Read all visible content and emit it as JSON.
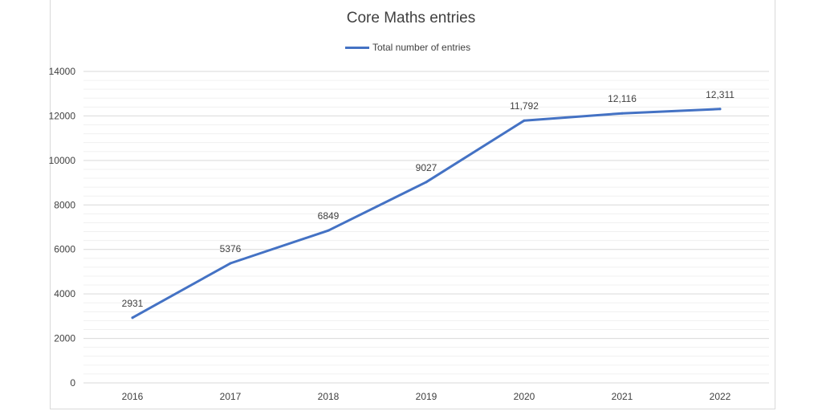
{
  "chart_data": {
    "type": "line",
    "title": "Core Maths entries",
    "categories": [
      "2016",
      "2017",
      "2018",
      "2019",
      "2020",
      "2021",
      "2022"
    ],
    "series": [
      {
        "name": "Total number of entries",
        "values": [
          2931,
          5376,
          6849,
          9027,
          11792,
          12116,
          12311
        ],
        "data_labels": [
          "2931",
          "5376",
          "6849",
          "9027",
          "11,792",
          "12,116",
          "12,311"
        ],
        "color": "#4472c4"
      }
    ],
    "ylim": [
      0,
      14000
    ],
    "y_ticks": [
      "0",
      "2000",
      "4000",
      "6000",
      "8000",
      "10000",
      "12000",
      "14000"
    ],
    "grid": true,
    "legend_position": "top-center"
  }
}
